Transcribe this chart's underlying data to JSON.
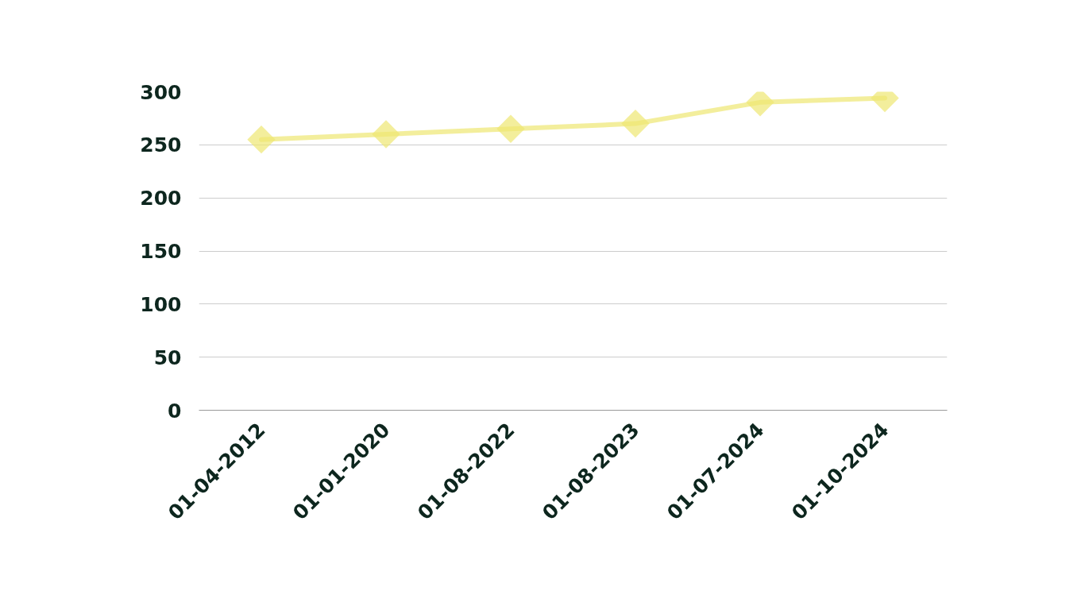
{
  "chart_data": {
    "type": "line",
    "categories": [
      "01-04-2012",
      "01-01-2020",
      "01-08-2022",
      "01-08-2023",
      "01-07-2024",
      "01-10-2024"
    ],
    "series": [
      {
        "color": "#f3ee9c",
        "values": [
          255,
          260,
          265,
          270,
          290,
          294
        ]
      }
    ],
    "ylim": [
      0,
      300
    ],
    "yticks": [
      0,
      50,
      100,
      150,
      200,
      250,
      300
    ],
    "grid": "y",
    "marker": "diamond",
    "line_style": "solid"
  }
}
